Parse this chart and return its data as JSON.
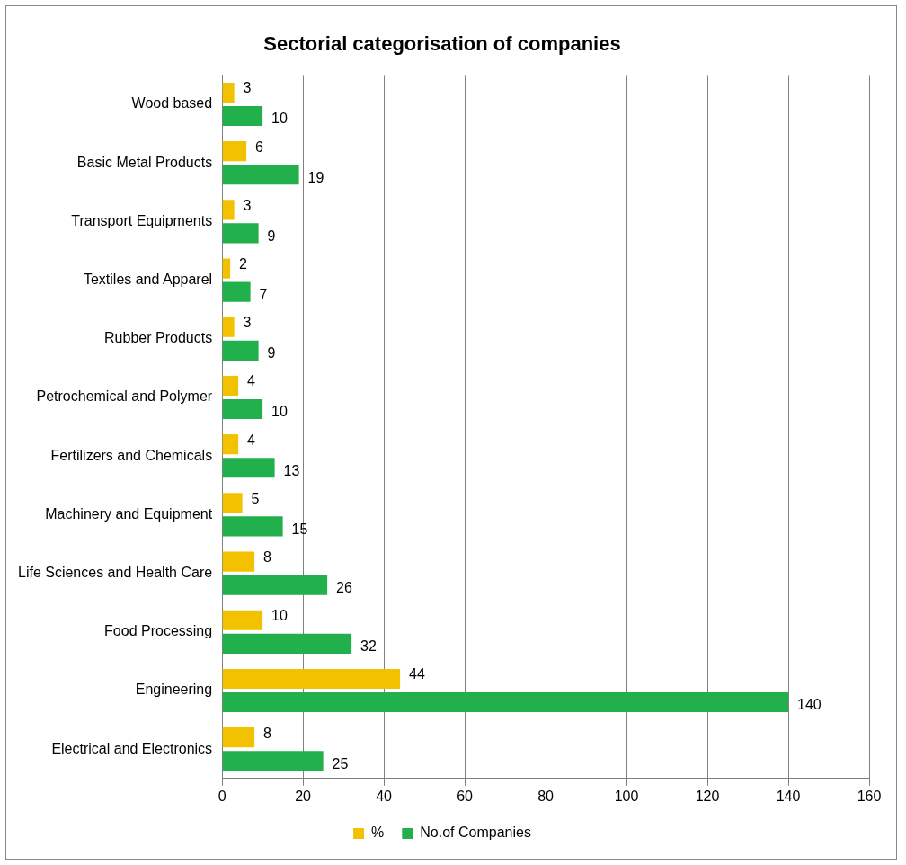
{
  "chart_data": {
    "type": "bar",
    "title": "Sectorial categorisation of companies",
    "orientation": "horizontal",
    "categories": [
      "Wood based",
      "Basic Metal Products",
      "Transport Equipments",
      "Textiles and Apparel",
      "Rubber Products",
      "Petrochemical and Polymer",
      "Fertilizers and Chemicals",
      "Machinery and Equipment",
      "Life Sciences and Health Care",
      "Food Processing",
      "Engineering",
      "Electrical and Electronics"
    ],
    "series": [
      {
        "name": "%",
        "color": "#f2c200",
        "values": [
          3,
          6,
          3,
          2,
          3,
          4,
          4,
          5,
          8,
          10,
          44,
          8
        ]
      },
      {
        "name": "No.of Companies",
        "color": "#21b04b",
        "values": [
          10,
          19,
          9,
          7,
          9,
          10,
          13,
          15,
          26,
          32,
          140,
          25
        ]
      }
    ],
    "xlim": [
      0,
      160
    ],
    "xticks": [
      0,
      20,
      40,
      60,
      80,
      100,
      120,
      140,
      160
    ],
    "grid": "x",
    "legend": "bottom",
    "data_labels": true
  }
}
